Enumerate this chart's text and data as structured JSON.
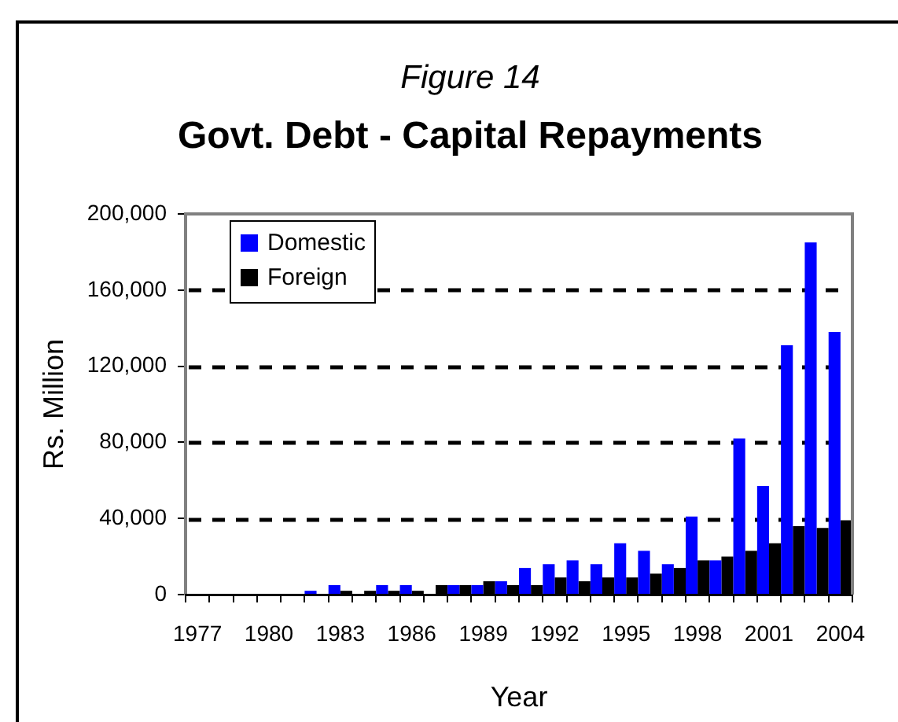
{
  "chart_data": {
    "type": "bar",
    "subtitle": "Figure 14",
    "title": "Govt. Debt - Capital Repayments",
    "xlabel": "Year",
    "ylabel": "Rs. Million",
    "categories": [
      "1977",
      null,
      null,
      "1980",
      null,
      null,
      "1983",
      null,
      null,
      "1986",
      null,
      null,
      "1989",
      null,
      null,
      "1992",
      null,
      null,
      "1995",
      null,
      null,
      "1998",
      null,
      null,
      "2001",
      null,
      null,
      "2004"
    ],
    "series": [
      {
        "name": "Domestic",
        "color": "#0000ff",
        "values": [
          0,
          0,
          0,
          0,
          0,
          2000,
          5000,
          0,
          5000,
          5000,
          0,
          5000,
          5000,
          7000,
          14000,
          16000,
          18000,
          16000,
          27000,
          23000,
          16000,
          41000,
          18000,
          82000,
          57000,
          131000,
          185000,
          138000
        ]
      },
      {
        "name": "Foreign",
        "color": "#000000",
        "values": [
          0,
          0,
          0,
          0,
          0,
          0,
          2000,
          2000,
          2000,
          2000,
          5000,
          5000,
          7000,
          5000,
          5000,
          9000,
          7000,
          9000,
          9000,
          11000,
          14000,
          18000,
          20000,
          23000,
          27000,
          36000,
          35000,
          39000
        ]
      }
    ],
    "ylim": [
      0,
      200000
    ],
    "yticks": [
      0,
      {
        "value": 40000,
        "label": "40,000"
      },
      {
        "value": 80000,
        "label": "80,000"
      },
      {
        "value": 120000,
        "label": "120,000"
      },
      {
        "value": 160000,
        "label": "160,000"
      },
      {
        "value": 200000,
        "label": "200,000"
      }
    ],
    "grid": "y",
    "legend": "top left"
  }
}
